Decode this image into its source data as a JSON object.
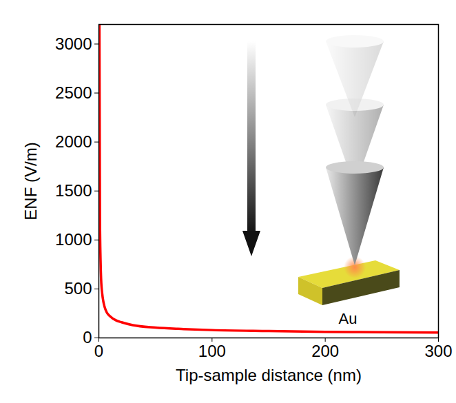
{
  "chart_data": {
    "type": "line",
    "x_label": "Tip-sample distance (nm)",
    "y_label": "ENF (V/m)",
    "x": [
      0.5,
      1,
      1.5,
      2,
      3,
      4,
      5,
      7,
      10,
      15,
      20,
      30,
      50,
      75,
      100,
      150,
      200,
      250,
      300
    ],
    "values": [
      3200,
      1200,
      800,
      600,
      450,
      370,
      320,
      260,
      220,
      180,
      160,
      130,
      105,
      90,
      80,
      70,
      62,
      58,
      55
    ],
    "color": "#ff0000",
    "xlim": [
      0,
      300
    ],
    "xticks": [
      0,
      100,
      200,
      300
    ],
    "ylim": [
      0,
      3200
    ],
    "yticks": [
      0,
      500,
      1000,
      1500,
      2000,
      2500,
      3000
    ],
    "grid": false,
    "annotations": [
      "Au"
    ]
  }
}
